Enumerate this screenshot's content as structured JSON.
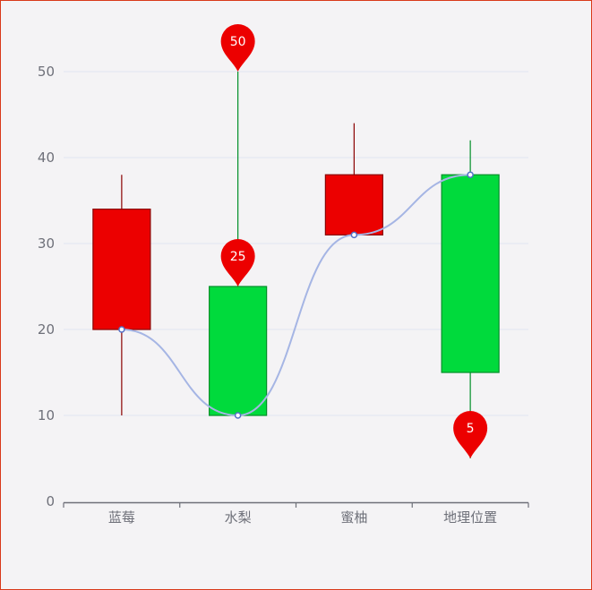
{
  "chart_data": {
    "type": "candlestick",
    "categories": [
      "蓝莓",
      "水梨",
      "蜜柚",
      "地理位置"
    ],
    "series": [
      {
        "type": "candlestick",
        "data": [
          {
            "open": 20,
            "close": 34,
            "low": 10,
            "high": 38
          },
          {
            "open": 25,
            "close": 10,
            "low": 10,
            "high": 50
          },
          {
            "open": 31,
            "close": 38,
            "low": 31,
            "high": 44
          },
          {
            "open": 38,
            "close": 15,
            "low": 5,
            "high": 42
          }
        ]
      },
      {
        "type": "line",
        "smooth": true,
        "values": [
          20,
          10,
          31,
          38
        ]
      }
    ],
    "mark_points": [
      {
        "category": "水梨",
        "value": 50,
        "label": "50"
      },
      {
        "category": "水梨",
        "value": 25,
        "label": "25"
      },
      {
        "category": "地理位置",
        "value": 5,
        "label": "5"
      }
    ],
    "y_ticks": [
      "0",
      "10",
      "20",
      "30",
      "40",
      "50"
    ],
    "ylim": [
      0,
      55
    ],
    "grid": true,
    "colors": {
      "up": "#ec0000",
      "up_border": "#8a0000",
      "down": "#00da3c",
      "down_border": "#008f28",
      "line": "#a5b5e4",
      "line_point": "#5470c6",
      "pin": "#ec0000",
      "grid": "#e0e6f1",
      "axis": "#6e7079"
    }
  }
}
